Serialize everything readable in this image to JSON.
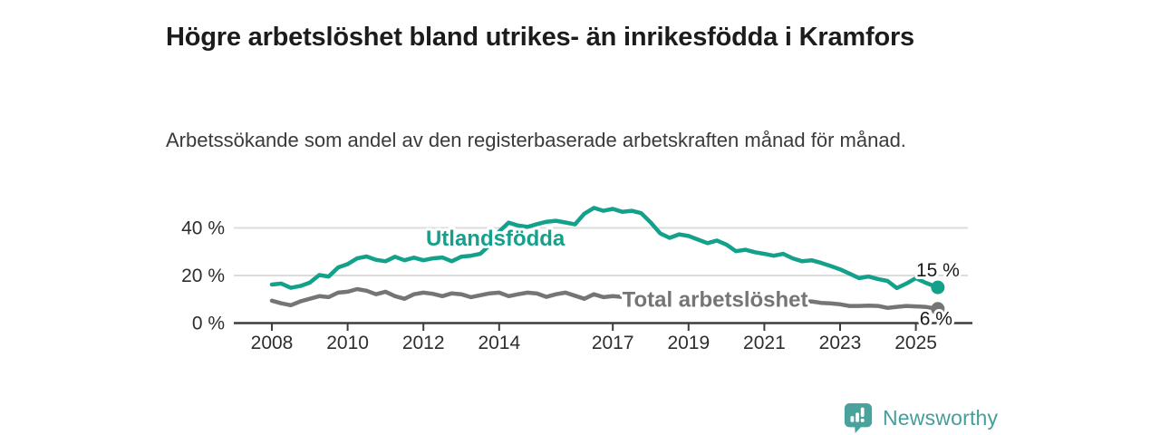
{
  "header": {
    "title": "Högre arbetslöshet bland utrikes- än inrikesfödda i Kramfors",
    "subtitle": "Arbetssökande som andel av den registerbaserade arbetskraften månad för månad."
  },
  "branding": {
    "name": "Newsworthy",
    "logo_icon": "bar-chart-speech-bubble",
    "logo_color": "#4aa29c"
  },
  "chart_data": {
    "type": "line",
    "unit": "%",
    "grid": "horizontal",
    "xlim": [
      2008,
      2025.6
    ],
    "ylim": [
      0,
      52
    ],
    "x_ticks": [
      2008,
      2010,
      2012,
      2014,
      2017,
      2019,
      2021,
      2023,
      2025
    ],
    "y_ticks": [
      {
        "value": 0,
        "label": "0 %"
      },
      {
        "value": 20,
        "label": "20 %"
      },
      {
        "value": 40,
        "label": "40 %"
      }
    ],
    "colors": {
      "axis": "#3d3d3d",
      "gridline": "#dcdcdc",
      "end_label_text": "#1a1a1a"
    },
    "series": [
      {
        "name": "Utlandsfödda",
        "color": "#14a18b",
        "end_label": "15 %",
        "end_label_side": "above",
        "line_label": {
          "text": "Utlandsfödda",
          "year": 2013.9,
          "value": 35.6,
          "mask": false
        },
        "points": [
          [
            2008.0,
            16.2
          ],
          [
            2008.25,
            16.6
          ],
          [
            2008.5,
            14.8
          ],
          [
            2008.75,
            15.6
          ],
          [
            2009.0,
            17.0
          ],
          [
            2009.25,
            20.2
          ],
          [
            2009.5,
            19.6
          ],
          [
            2009.75,
            23.4
          ],
          [
            2010.0,
            24.8
          ],
          [
            2010.25,
            27.2
          ],
          [
            2010.5,
            28.0
          ],
          [
            2010.75,
            26.6
          ],
          [
            2011.0,
            26.0
          ],
          [
            2011.25,
            27.9
          ],
          [
            2011.5,
            26.4
          ],
          [
            2011.75,
            27.5
          ],
          [
            2012.0,
            26.4
          ],
          [
            2012.25,
            27.2
          ],
          [
            2012.5,
            27.6
          ],
          [
            2012.75,
            26.0
          ],
          [
            2013.0,
            27.9
          ],
          [
            2013.25,
            28.3
          ],
          [
            2013.5,
            29.1
          ],
          [
            2013.75,
            32.8
          ],
          [
            2014.0,
            38.5
          ],
          [
            2014.25,
            42.2
          ],
          [
            2014.5,
            41.0
          ],
          [
            2014.75,
            40.4
          ],
          [
            2015.0,
            41.6
          ],
          [
            2015.25,
            42.6
          ],
          [
            2015.5,
            43.0
          ],
          [
            2015.75,
            42.3
          ],
          [
            2016.0,
            41.5
          ],
          [
            2016.25,
            46.0
          ],
          [
            2016.5,
            48.4
          ],
          [
            2016.75,
            47.2
          ],
          [
            2017.0,
            48.0
          ],
          [
            2017.25,
            46.8
          ],
          [
            2017.5,
            47.2
          ],
          [
            2017.75,
            46.2
          ],
          [
            2018.0,
            42.3
          ],
          [
            2018.25,
            37.7
          ],
          [
            2018.5,
            35.8
          ],
          [
            2018.75,
            37.3
          ],
          [
            2019.0,
            36.6
          ],
          [
            2019.25,
            35.1
          ],
          [
            2019.5,
            33.6
          ],
          [
            2019.75,
            34.7
          ],
          [
            2020.0,
            33.0
          ],
          [
            2020.25,
            30.2
          ],
          [
            2020.5,
            30.8
          ],
          [
            2020.75,
            29.8
          ],
          [
            2021.0,
            29.1
          ],
          [
            2021.25,
            28.3
          ],
          [
            2021.5,
            29.1
          ],
          [
            2021.75,
            27.2
          ],
          [
            2022.0,
            26.0
          ],
          [
            2022.25,
            26.4
          ],
          [
            2022.5,
            25.3
          ],
          [
            2022.75,
            24.0
          ],
          [
            2023.0,
            22.6
          ],
          [
            2023.25,
            20.8
          ],
          [
            2023.5,
            18.9
          ],
          [
            2023.75,
            19.6
          ],
          [
            2024.0,
            18.5
          ],
          [
            2024.25,
            17.7
          ],
          [
            2024.5,
            14.7
          ],
          [
            2024.75,
            16.6
          ],
          [
            2025.0,
            18.9
          ],
          [
            2025.25,
            17.0
          ],
          [
            2025.58,
            15.0
          ]
        ]
      },
      {
        "name": "Total arbetslöshet",
        "color": "#757575",
        "end_label": "6 %",
        "end_label_side": "below",
        "line_label": {
          "text": "Total arbetslöshet",
          "year": 2019.7,
          "value": 10.0,
          "mask": true
        },
        "points": [
          [
            2008.0,
            9.4
          ],
          [
            2008.25,
            8.3
          ],
          [
            2008.5,
            7.5
          ],
          [
            2008.75,
            9.1
          ],
          [
            2009.0,
            10.2
          ],
          [
            2009.25,
            11.3
          ],
          [
            2009.5,
            10.9
          ],
          [
            2009.75,
            12.8
          ],
          [
            2010.0,
            13.2
          ],
          [
            2010.25,
            14.3
          ],
          [
            2010.5,
            13.6
          ],
          [
            2010.75,
            12.1
          ],
          [
            2011.0,
            13.2
          ],
          [
            2011.25,
            11.3
          ],
          [
            2011.5,
            10.2
          ],
          [
            2011.75,
            12.1
          ],
          [
            2012.0,
            12.8
          ],
          [
            2012.25,
            12.3
          ],
          [
            2012.5,
            11.3
          ],
          [
            2012.75,
            12.5
          ],
          [
            2013.0,
            12.1
          ],
          [
            2013.25,
            10.9
          ],
          [
            2013.5,
            11.7
          ],
          [
            2013.75,
            12.5
          ],
          [
            2014.0,
            12.8
          ],
          [
            2014.25,
            11.3
          ],
          [
            2014.5,
            12.1
          ],
          [
            2014.75,
            12.8
          ],
          [
            2015.0,
            12.4
          ],
          [
            2015.25,
            11.0
          ],
          [
            2015.5,
            12.1
          ],
          [
            2015.75,
            12.8
          ],
          [
            2016.0,
            11.5
          ],
          [
            2016.25,
            10.2
          ],
          [
            2016.5,
            12.1
          ],
          [
            2016.75,
            10.9
          ],
          [
            2017.0,
            11.3
          ],
          [
            2017.25,
            11.0
          ],
          [
            2017.5,
            10.5
          ],
          [
            2017.75,
            10.0
          ],
          [
            2018.0,
            9.8
          ],
          [
            2018.25,
            9.3
          ],
          [
            2018.5,
            9.0
          ],
          [
            2018.75,
            9.2
          ],
          [
            2019.0,
            8.8
          ],
          [
            2019.25,
            8.5
          ],
          [
            2019.5,
            8.3
          ],
          [
            2019.75,
            8.6
          ],
          [
            2020.0,
            9.0
          ],
          [
            2020.25,
            9.5
          ],
          [
            2020.5,
            9.3
          ],
          [
            2020.75,
            9.0
          ],
          [
            2021.0,
            8.8
          ],
          [
            2021.25,
            8.5
          ],
          [
            2021.5,
            8.2
          ],
          [
            2021.75,
            8.4
          ],
          [
            2022.0,
            9.0
          ],
          [
            2022.25,
            9.1
          ],
          [
            2022.5,
            8.5
          ],
          [
            2022.75,
            8.3
          ],
          [
            2023.0,
            7.9
          ],
          [
            2023.25,
            7.2
          ],
          [
            2023.5,
            7.2
          ],
          [
            2023.75,
            7.3
          ],
          [
            2024.0,
            7.2
          ],
          [
            2024.25,
            6.4
          ],
          [
            2024.5,
            6.8
          ],
          [
            2024.75,
            7.2
          ],
          [
            2025.0,
            7.0
          ],
          [
            2025.25,
            6.8
          ],
          [
            2025.58,
            6.0
          ]
        ]
      }
    ]
  }
}
